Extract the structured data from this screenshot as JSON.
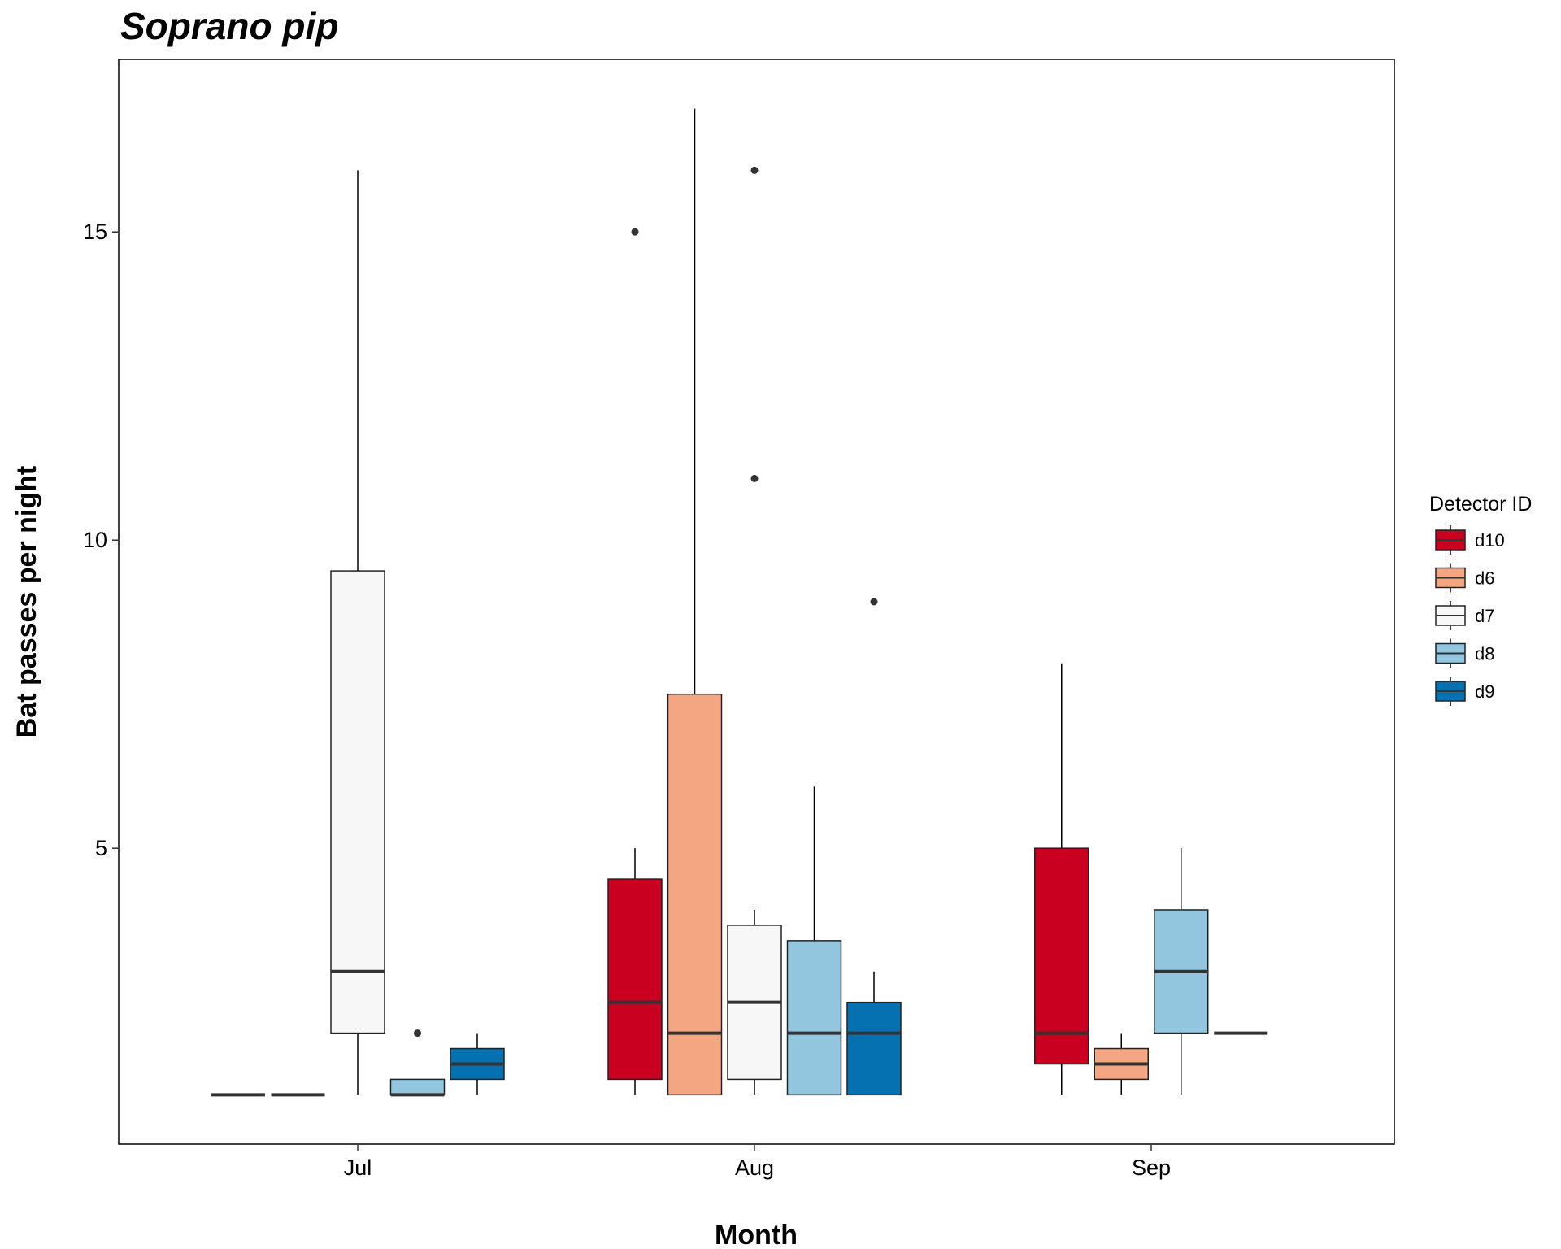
{
  "chart_data": {
    "type": "boxplot",
    "title": "Soprano pip",
    "xlabel": "Month",
    "ylabel": "Bat passes per night",
    "categories": [
      "Jul",
      "Aug",
      "Sep"
    ],
    "y_ticks": [
      5,
      10,
      15
    ],
    "y_tick_labels": [
      "5",
      "10",
      "15"
    ],
    "ylim": [
      0.2,
      17.8
    ],
    "grid": false,
    "legend": {
      "title": "Detector ID",
      "position": "right",
      "entries": [
        "d10",
        "d6",
        "d7",
        "d8",
        "d9"
      ]
    },
    "series": [
      {
        "name": "d10",
        "color": "#CA0020",
        "boxes": [
          {
            "category": "Jul",
            "min": 1,
            "q1": 1,
            "median": 1,
            "q3": 1,
            "max": 1,
            "outliers": []
          },
          {
            "category": "Aug",
            "min": 1,
            "q1": 1.25,
            "median": 2.5,
            "q3": 4.5,
            "max": 5,
            "outliers": [
              15
            ]
          },
          {
            "category": "Sep",
            "min": 1,
            "q1": 1.5,
            "median": 2,
            "q3": 5,
            "max": 8,
            "outliers": []
          }
        ]
      },
      {
        "name": "d6",
        "color": "#F4A582",
        "boxes": [
          {
            "category": "Jul",
            "min": 1,
            "q1": 1,
            "median": 1,
            "q3": 1,
            "max": 1,
            "outliers": []
          },
          {
            "category": "Aug",
            "min": 1,
            "q1": 1,
            "median": 2,
            "q3": 7.5,
            "max": 17,
            "outliers": []
          },
          {
            "category": "Sep",
            "min": 1,
            "q1": 1.25,
            "median": 1.5,
            "q3": 1.75,
            "max": 2,
            "outliers": []
          }
        ]
      },
      {
        "name": "d7",
        "color": "#F7F7F7",
        "boxes": [
          {
            "category": "Jul",
            "min": 1,
            "q1": 2,
            "median": 3,
            "q3": 9.5,
            "max": 16,
            "outliers": []
          },
          {
            "category": "Aug",
            "min": 1,
            "q1": 1.25,
            "median": 2.5,
            "q3": 3.75,
            "max": 4,
            "outliers": [
              11,
              16
            ]
          }
        ]
      },
      {
        "name": "d8",
        "color": "#92C5DE",
        "boxes": [
          {
            "category": "Jul",
            "min": 1,
            "q1": 1,
            "median": 1,
            "q3": 1.25,
            "max": 1.25,
            "outliers": [
              2
            ]
          },
          {
            "category": "Aug",
            "min": 1,
            "q1": 1,
            "median": 2,
            "q3": 3.5,
            "max": 6,
            "outliers": []
          },
          {
            "category": "Sep",
            "min": 1,
            "q1": 2,
            "median": 3,
            "q3": 4,
            "max": 5,
            "outliers": []
          }
        ]
      },
      {
        "name": "d9",
        "color": "#0571B0",
        "boxes": [
          {
            "category": "Jul",
            "min": 1,
            "q1": 1.25,
            "median": 1.5,
            "q3": 1.75,
            "max": 2,
            "outliers": []
          },
          {
            "category": "Aug",
            "min": 1,
            "q1": 1,
            "median": 2,
            "q3": 2.5,
            "max": 3,
            "outliers": [
              9
            ]
          },
          {
            "category": "Sep",
            "min": 2,
            "q1": 2,
            "median": 2,
            "q3": 2,
            "max": 2,
            "outliers": []
          }
        ]
      }
    ]
  }
}
